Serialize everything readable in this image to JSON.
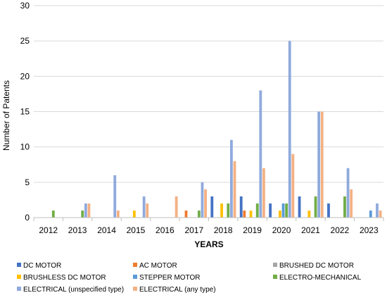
{
  "chart_data": {
    "type": "bar",
    "title": "",
    "xlabel": "YEARS",
    "ylabel": "Number of Patents",
    "ylim": [
      0,
      30
    ],
    "yticks": [
      "0",
      "5",
      "10",
      "15",
      "20",
      "25",
      "30"
    ],
    "grid": "horizontal",
    "legend_position": "bottom",
    "categories": [
      "2012",
      "2013",
      "2014",
      "2015",
      "2016",
      "2017",
      "2018",
      "2019",
      "2020",
      "2021",
      "2022",
      "2023"
    ],
    "series": [
      {
        "name": "DC MOTOR",
        "color": "#4472c4",
        "values": [
          0,
          0,
          0,
          0,
          0,
          0,
          3,
          3,
          2,
          3,
          2,
          0
        ]
      },
      {
        "name": "AC MOTOR",
        "color": "#ed7d31",
        "values": [
          0,
          0,
          0,
          0,
          0,
          1,
          0,
          1,
          0,
          0,
          0,
          0
        ]
      },
      {
        "name": "BRUSHED DC MOTOR",
        "color": "#a5a5a5",
        "values": [
          0,
          0,
          0,
          0,
          0,
          0,
          0,
          0,
          0,
          0,
          0,
          0
        ]
      },
      {
        "name": "BRUSHLESS DC MOTOR",
        "color": "#ffc000",
        "values": [
          0,
          0,
          0,
          1,
          0,
          0,
          2,
          1,
          1,
          1,
          0,
          0
        ]
      },
      {
        "name": "STEPPER MOTOR",
        "color": "#5b9bd5",
        "values": [
          0,
          0,
          0,
          0,
          0,
          0,
          0,
          0,
          2,
          0,
          0,
          1
        ]
      },
      {
        "name": "ELECTRO-MECHANICAL",
        "color": "#70ad47",
        "values": [
          1,
          1,
          0,
          0,
          0,
          1,
          2,
          2,
          2,
          3,
          3,
          0
        ]
      },
      {
        "name": "ELECTRICAL (unspecified type)",
        "color": "#8faadc",
        "values": [
          0,
          2,
          6,
          3,
          0,
          5,
          11,
          18,
          25,
          15,
          7,
          2
        ]
      },
      {
        "name": "ELECTRICAL (any type)",
        "color": "#f4b183",
        "values": [
          0,
          2,
          1,
          2,
          3,
          4,
          8,
          7,
          9,
          15,
          4,
          1
        ]
      }
    ]
  }
}
